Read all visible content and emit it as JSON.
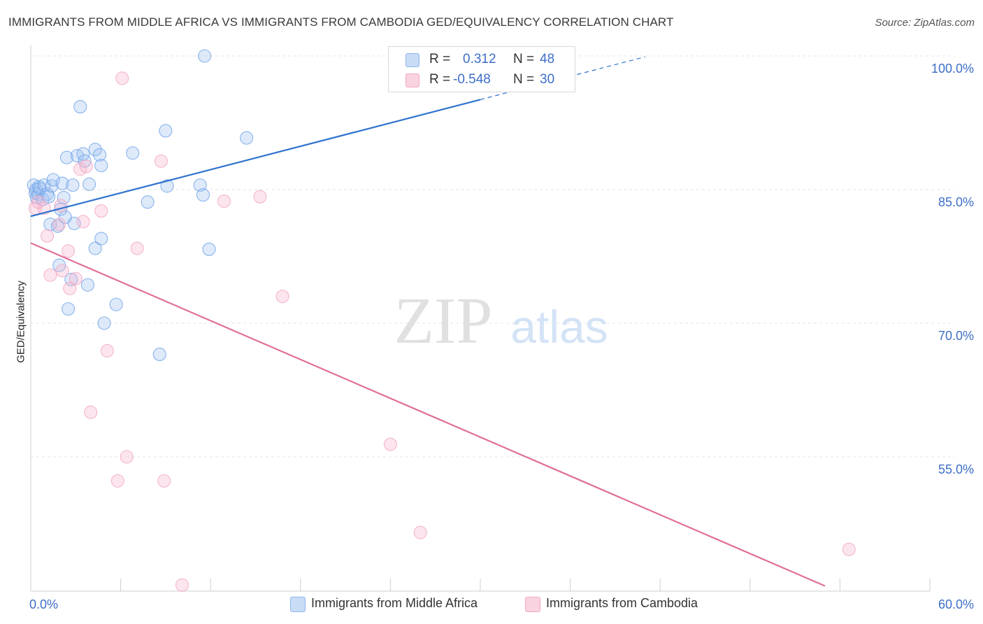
{
  "title": "IMMIGRANTS FROM MIDDLE AFRICA VS IMMIGRANTS FROM CAMBODIA GED/EQUIVALENCY CORRELATION CHART",
  "source": "Source: ZipAtlas.com",
  "watermark": {
    "zip": "ZIP",
    "atlas": "atlas"
  },
  "legend_top": {
    "rows": [
      {
        "r_label": "R =",
        "r_value": "0.312",
        "n_label": "N =",
        "n_value": "48"
      },
      {
        "r_label": "R =",
        "r_value": "-0.548",
        "n_label": "N =",
        "n_value": "30"
      }
    ]
  },
  "chart_data": {
    "type": "scatter",
    "title": "IMMIGRANTS FROM MIDDLE AFRICA VS IMMIGRANTS FROM CAMBODIA GED/EQUIVALENCY CORRELATION CHART",
    "xlabel": "",
    "ylabel": "GED/Equivalency",
    "xlim": [
      0,
      60
    ],
    "ylim": [
      40.5,
      101
    ],
    "x_tick_labels": [
      "0.0%",
      "60.0%"
    ],
    "y_tick_labels": [
      "100.0%",
      "85.0%",
      "70.0%",
      "55.0%"
    ],
    "y_ticks": [
      100,
      85,
      70,
      55
    ],
    "grid": true,
    "legend": "bottom",
    "series": [
      {
        "name": "Immigrants from Middle Africa",
        "color": "#6fa3e8",
        "line_color": "#2f72d0",
        "r": "0.312",
        "n": "48",
        "points": [
          [
            0.2,
            85.5
          ],
          [
            0.3,
            84.6
          ],
          [
            0.35,
            85.0
          ],
          [
            0.4,
            84.1
          ],
          [
            0.5,
            84.5
          ],
          [
            0.55,
            85.3
          ],
          [
            0.6,
            85.1
          ],
          [
            0.8,
            83.9
          ],
          [
            0.9,
            85.5
          ],
          [
            1.1,
            84.5
          ],
          [
            1.2,
            84.2
          ],
          [
            1.3,
            81.1
          ],
          [
            1.4,
            85.4
          ],
          [
            1.5,
            86.1
          ],
          [
            1.8,
            80.9
          ],
          [
            1.9,
            76.5
          ],
          [
            2.0,
            82.8
          ],
          [
            2.1,
            85.7
          ],
          [
            2.2,
            84.1
          ],
          [
            2.3,
            81.9
          ],
          [
            2.4,
            88.6
          ],
          [
            2.5,
            71.6
          ],
          [
            2.7,
            74.9
          ],
          [
            2.8,
            85.5
          ],
          [
            2.9,
            81.2
          ],
          [
            3.1,
            88.8
          ],
          [
            3.3,
            94.3
          ],
          [
            3.5,
            89.0
          ],
          [
            3.6,
            88.2
          ],
          [
            3.8,
            74.3
          ],
          [
            3.9,
            85.6
          ],
          [
            4.3,
            89.5
          ],
          [
            4.3,
            78.4
          ],
          [
            4.6,
            88.9
          ],
          [
            4.7,
            87.7
          ],
          [
            4.7,
            79.5
          ],
          [
            4.9,
            70.0
          ],
          [
            5.7,
            72.1
          ],
          [
            6.8,
            89.1
          ],
          [
            7.8,
            83.6
          ],
          [
            8.6,
            66.5
          ],
          [
            9.0,
            91.6
          ],
          [
            9.1,
            85.4
          ],
          [
            11.3,
            85.5
          ],
          [
            11.5,
            84.4
          ],
          [
            11.6,
            100.0
          ],
          [
            11.9,
            78.3
          ],
          [
            14.4,
            90.8
          ]
        ]
      },
      {
        "name": "Immigrants from Cambodia",
        "color": "#f2a6c0",
        "line_color": "#e06f9a",
        "r": "-0.548",
        "n": "30",
        "points": [
          [
            0.3,
            82.9
          ],
          [
            0.5,
            83.6
          ],
          [
            0.9,
            82.9
          ],
          [
            1.1,
            79.8
          ],
          [
            1.3,
            75.4
          ],
          [
            1.9,
            81.1
          ],
          [
            2.0,
            83.2
          ],
          [
            2.1,
            75.9
          ],
          [
            2.5,
            78.1
          ],
          [
            2.6,
            73.9
          ],
          [
            3.0,
            75.0
          ],
          [
            3.3,
            87.3
          ],
          [
            3.5,
            81.4
          ],
          [
            3.7,
            87.6
          ],
          [
            4.0,
            60.0
          ],
          [
            4.7,
            82.6
          ],
          [
            5.1,
            66.9
          ],
          [
            5.8,
            52.3
          ],
          [
            6.1,
            97.5
          ],
          [
            6.4,
            55.0
          ],
          [
            7.1,
            78.4
          ],
          [
            8.7,
            88.2
          ],
          [
            8.9,
            52.3
          ],
          [
            10.1,
            40.6
          ],
          [
            12.9,
            83.7
          ],
          [
            15.3,
            84.2
          ],
          [
            16.8,
            73.0
          ],
          [
            24.0,
            56.4
          ],
          [
            26.0,
            46.5
          ],
          [
            54.6,
            44.6
          ]
        ]
      }
    ],
    "trend_lines": [
      {
        "series": "Immigrants from Middle Africa",
        "x0": 0,
        "y0": 82.0,
        "x1": 30.0,
        "y1": 95.1,
        "dash_to_x": 41.0,
        "dash_to_y": 99.9
      },
      {
        "series": "Immigrants from Cambodia",
        "x0": 0,
        "y0": 79.0,
        "x1": 53.0,
        "y1": 40.5
      }
    ]
  }
}
